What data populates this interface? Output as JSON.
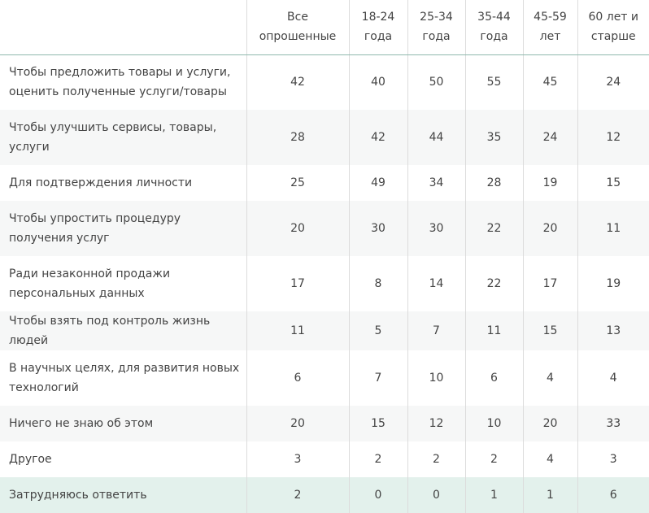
{
  "header": {
    "columns": [
      {
        "line1": "",
        "line2": ""
      },
      {
        "line1": "Все",
        "line2": "опрошенные"
      },
      {
        "line1": "18-24",
        "line2": "года"
      },
      {
        "line1": "25-34",
        "line2": "года"
      },
      {
        "line1": "35-44",
        "line2": "года"
      },
      {
        "line1": "45-59",
        "line2": "лет"
      },
      {
        "line1": "60 лет и",
        "line2": "старше"
      }
    ]
  },
  "rows": [
    {
      "label": "Чтобы предложить товары и услуги, оценить полученные услуги/товары",
      "values": [
        "42",
        "40",
        "50",
        "55",
        "45",
        "24"
      ]
    },
    {
      "label": "Чтобы улучшить сервисы, товары, услуги",
      "values": [
        "28",
        "42",
        "44",
        "35",
        "24",
        "12"
      ]
    },
    {
      "label": "Для подтверждения личности",
      "values": [
        "25",
        "49",
        "34",
        "28",
        "19",
        "15"
      ]
    },
    {
      "label": "Чтобы упростить процедуру получения услуг",
      "values": [
        "20",
        "30",
        "30",
        "22",
        "20",
        "11"
      ]
    },
    {
      "label": "Ради незаконной продажи персональных данных",
      "values": [
        "17",
        "8",
        "14",
        "22",
        "17",
        "19"
      ]
    },
    {
      "label": "Чтобы взять под контроль жизнь людей",
      "values": [
        "11",
        "5",
        "7",
        "11",
        "15",
        "13"
      ]
    },
    {
      "label": "В научных целях, для развития новых технологий",
      "values": [
        "6",
        "7",
        "10",
        "6",
        "4",
        "4"
      ]
    },
    {
      "label": "Ничего не знаю об этом",
      "values": [
        "20",
        "15",
        "12",
        "10",
        "20",
        "33"
      ]
    },
    {
      "label": "Другое",
      "values": [
        "3",
        "2",
        "2",
        "2",
        "4",
        "3"
      ]
    },
    {
      "label": "Затрудняюсь ответить",
      "values": [
        "2",
        "0",
        "0",
        "1",
        "1",
        "6"
      ]
    }
  ]
}
